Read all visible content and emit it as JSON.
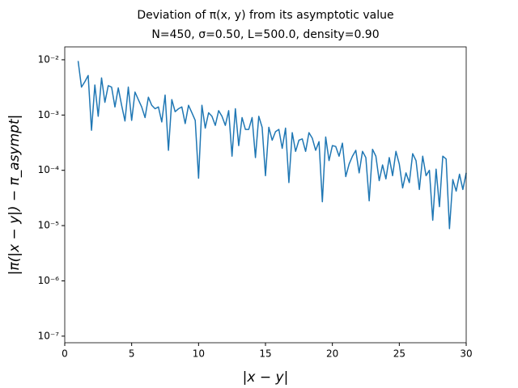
{
  "chart_data": {
    "type": "line",
    "title": "Deviation of π(x, y) from its asymptotic value",
    "subtitle": "N=450, σ=0.50, L=500.0, density=0.90",
    "x_label": "|x − y|",
    "y_label": "|π(|x − y|) − π_asympt|",
    "color": "#1f77b4",
    "log_y": true,
    "xlim": [
      0,
      30
    ],
    "xticks": [
      0,
      5,
      10,
      15,
      20,
      25,
      30
    ],
    "ylim": [
      7.6e-08,
      0.0171
    ],
    "yticks": [
      {
        "value": 1e-07,
        "label": "10⁻⁷"
      },
      {
        "value": 1e-06,
        "label": "10⁻⁶"
      },
      {
        "value": 1e-05,
        "label": "10⁻⁵"
      },
      {
        "value": 0.0001,
        "label": "10⁻⁴"
      },
      {
        "value": 0.001,
        "label": "10⁻³"
      },
      {
        "value": 0.01,
        "label": "10⁻²"
      }
    ],
    "x": [
      1,
      1.25,
      1.5,
      1.75,
      2,
      2.25,
      2.5,
      2.75,
      3,
      3.25,
      3.5,
      3.75,
      4,
      4.25,
      4.5,
      4.75,
      5,
      5.25,
      5.5,
      5.75,
      6,
      6.25,
      6.5,
      6.75,
      7,
      7.25,
      7.5,
      7.75,
      8,
      8.25,
      8.5,
      8.75,
      9,
      9.25,
      9.5,
      9.75,
      10,
      10.25,
      10.5,
      10.75,
      11,
      11.25,
      11.5,
      11.75,
      12,
      12.25,
      12.5,
      12.75,
      13,
      13.25,
      13.5,
      13.75,
      14,
      14.25,
      14.5,
      14.75,
      15,
      15.25,
      15.5,
      15.75,
      16,
      16.25,
      16.5,
      16.75,
      17,
      17.25,
      17.5,
      17.75,
      18,
      18.25,
      18.5,
      18.75,
      19,
      19.25,
      19.5,
      19.75,
      20,
      20.25,
      20.5,
      20.75,
      21,
      21.25,
      21.5,
      21.75,
      22,
      22.25,
      22.5,
      22.75,
      23,
      23.25,
      23.5,
      23.75,
      24,
      24.25,
      24.5,
      24.75,
      25,
      25.25,
      25.5,
      25.75,
      26,
      26.25,
      26.5,
      26.75,
      27,
      27.25,
      27.5,
      27.75,
      28,
      28.25,
      28.5,
      28.75,
      29,
      29.25,
      29.5,
      29.75,
      30
    ],
    "values": [
      0.0095,
      0.0032,
      0.004,
      0.0052,
      0.00053,
      0.0035,
      0.00095,
      0.0047,
      0.0017,
      0.0034,
      0.0032,
      0.0014,
      0.0031,
      0.0015,
      0.00078,
      0.0032,
      0.0008,
      0.0026,
      0.0019,
      0.0014,
      0.0009,
      0.0021,
      0.0015,
      0.0013,
      0.0014,
      0.00075,
      0.0023,
      0.00023,
      0.0019,
      0.00115,
      0.0013,
      0.0014,
      0.0007,
      0.0015,
      0.0011,
      0.0008,
      7.2e-05,
      0.0015,
      0.00058,
      0.0011,
      0.00095,
      0.00065,
      0.0012,
      0.00095,
      0.00065,
      0.0012,
      0.00018,
      0.0013,
      0.00028,
      0.0009,
      0.00055,
      0.00055,
      0.0009,
      0.00017,
      0.00095,
      0.0006,
      8e-05,
      0.0006,
      0.00035,
      0.0005,
      0.00055,
      0.00025,
      0.00058,
      6e-05,
      0.00048,
      0.00022,
      0.00035,
      0.00037,
      0.00022,
      0.00048,
      0.00038,
      0.00023,
      0.00033,
      2.7e-05,
      0.0004,
      0.00015,
      0.00028,
      0.00027,
      0.00018,
      0.00031,
      7.7e-05,
      0.00013,
      0.00018,
      0.00023,
      9e-05,
      0.00022,
      0.00017,
      2.8e-05,
      0.00024,
      0.00018,
      6.5e-05,
      0.000125,
      7e-05,
      0.00017,
      8e-05,
      0.00022,
      0.00013,
      4.8e-05,
      9e-05,
      6e-05,
      0.0002,
      0.00015,
      4.5e-05,
      0.00018,
      8e-05,
      0.0001,
      1.25e-05,
      0.000105,
      2.2e-05,
      0.00018,
      0.00016,
      8.8e-06,
      6.8e-05,
      4.2e-05,
      8.5e-05,
      4.5e-05,
      9e-05
    ]
  }
}
